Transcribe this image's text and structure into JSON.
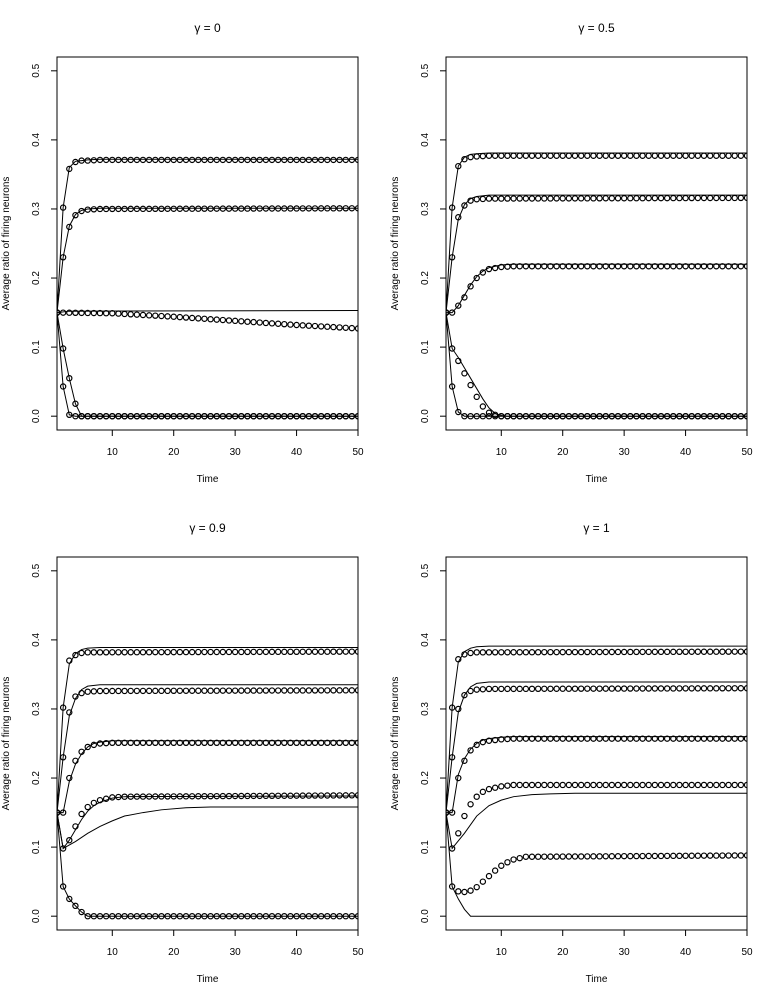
{
  "chart_data": [
    {
      "type": "line",
      "title": "γ = 0",
      "xlabel": "Time",
      "ylabel": "Average ratio of firing neurons",
      "xlim": [
        1,
        50
      ],
      "ylim": [
        -0.02,
        0.52
      ],
      "xticks": [
        10,
        20,
        30,
        40,
        50
      ],
      "yticks": [
        0.0,
        0.1,
        0.2,
        0.3,
        0.4,
        0.5
      ],
      "grid": false,
      "series": [
        {
          "style": "lines",
          "x": [
            1,
            2,
            3,
            4,
            5,
            6,
            8,
            50
          ],
          "y": [
            0.15,
            0.302,
            0.36,
            0.369,
            0.37,
            0.371,
            0.372,
            0.372
          ]
        },
        {
          "style": "lines",
          "x": [
            1,
            2,
            3,
            4,
            5,
            6,
            8,
            50
          ],
          "y": [
            0.15,
            0.23,
            0.275,
            0.292,
            0.298,
            0.3,
            0.301,
            0.301
          ]
        },
        {
          "style": "lines",
          "x": [
            1,
            3,
            50
          ],
          "y": [
            0.15,
            0.152,
            0.153
          ]
        },
        {
          "style": "lines",
          "x": [
            1,
            2,
            3,
            4,
            5,
            50
          ],
          "y": [
            0.15,
            0.098,
            0.055,
            0.018,
            0.0,
            0.0
          ]
        },
        {
          "style": "lines",
          "x": [
            1,
            2,
            3,
            4,
            50
          ],
          "y": [
            0.15,
            0.043,
            0.002,
            0.0,
            0.0
          ]
        },
        {
          "style": "points",
          "x": [
            1,
            2,
            3,
            4,
            5,
            6,
            8,
            50
          ],
          "y": [
            0.15,
            0.302,
            0.358,
            0.368,
            0.37,
            0.37,
            0.371,
            0.371
          ]
        },
        {
          "style": "points",
          "x": [
            1,
            2,
            3,
            4,
            5,
            6,
            8,
            50
          ],
          "y": [
            0.15,
            0.23,
            0.274,
            0.291,
            0.297,
            0.299,
            0.3,
            0.301
          ]
        },
        {
          "style": "points",
          "x": [
            1,
            10,
            20,
            30,
            40,
            50
          ],
          "y": [
            0.15,
            0.149,
            0.144,
            0.138,
            0.132,
            0.127
          ]
        },
        {
          "style": "points",
          "x": [
            1,
            2,
            3,
            4,
            5,
            50
          ],
          "y": [
            0.15,
            0.098,
            0.055,
            0.018,
            0.0,
            0.0
          ]
        },
        {
          "style": "points",
          "x": [
            1,
            2,
            3,
            4,
            50
          ],
          "y": [
            0.15,
            0.043,
            0.002,
            0.0,
            0.0
          ]
        }
      ]
    },
    {
      "type": "line",
      "title": "γ = 0.5",
      "xlabel": "Time",
      "ylabel": "Average ratio of firing neurons",
      "xlim": [
        1,
        50
      ],
      "ylim": [
        -0.02,
        0.52
      ],
      "xticks": [
        10,
        20,
        30,
        40,
        50
      ],
      "yticks": [
        0.0,
        0.1,
        0.2,
        0.3,
        0.4,
        0.5
      ],
      "grid": false,
      "series": [
        {
          "style": "lines",
          "x": [
            1,
            2,
            3,
            4,
            5,
            6,
            8,
            50
          ],
          "y": [
            0.15,
            0.302,
            0.362,
            0.375,
            0.379,
            0.38,
            0.381,
            0.381
          ]
        },
        {
          "style": "lines",
          "x": [
            1,
            2,
            3,
            4,
            5,
            6,
            8,
            50
          ],
          "y": [
            0.15,
            0.23,
            0.285,
            0.306,
            0.315,
            0.318,
            0.32,
            0.32
          ]
        },
        {
          "style": "lines",
          "x": [
            1,
            2,
            3,
            4,
            5,
            6,
            7,
            8,
            10,
            12,
            50
          ],
          "y": [
            0.15,
            0.15,
            0.16,
            0.175,
            0.19,
            0.202,
            0.21,
            0.215,
            0.219,
            0.22,
            0.22
          ]
        },
        {
          "style": "lines",
          "x": [
            1,
            2,
            3,
            4,
            5,
            6,
            7,
            8,
            9,
            10,
            11,
            50
          ],
          "y": [
            0.15,
            0.098,
            0.085,
            0.07,
            0.055,
            0.04,
            0.025,
            0.012,
            0.004,
            0.001,
            0.0,
            0.0
          ]
        },
        {
          "style": "lines",
          "x": [
            1,
            2,
            3,
            4,
            50
          ],
          "y": [
            0.15,
            0.043,
            0.006,
            0.0,
            0.0
          ]
        },
        {
          "style": "points",
          "x": [
            1,
            2,
            3,
            4,
            5,
            6,
            8,
            50
          ],
          "y": [
            0.15,
            0.302,
            0.362,
            0.372,
            0.375,
            0.376,
            0.377,
            0.377
          ]
        },
        {
          "style": "points",
          "x": [
            1,
            2,
            3,
            4,
            5,
            6,
            8,
            50
          ],
          "y": [
            0.15,
            0.23,
            0.288,
            0.305,
            0.312,
            0.314,
            0.315,
            0.316
          ]
        },
        {
          "style": "points",
          "x": [
            1,
            2,
            3,
            4,
            5,
            6,
            7,
            8,
            10,
            12,
            50
          ],
          "y": [
            0.15,
            0.15,
            0.16,
            0.172,
            0.188,
            0.2,
            0.208,
            0.213,
            0.216,
            0.217,
            0.217
          ]
        },
        {
          "style": "points",
          "x": [
            1,
            2,
            3,
            4,
            5,
            6,
            7,
            8,
            9,
            10,
            11,
            50
          ],
          "y": [
            0.15,
            0.098,
            0.08,
            0.062,
            0.045,
            0.028,
            0.014,
            0.005,
            0.002,
            0.0,
            0.0,
            0.0
          ]
        },
        {
          "style": "points",
          "x": [
            1,
            2,
            3,
            4,
            50
          ],
          "y": [
            0.15,
            0.043,
            0.006,
            0.0,
            0.0
          ]
        }
      ]
    },
    {
      "type": "line",
      "title": "γ = 0.9",
      "xlabel": "Time",
      "ylabel": "Average ratio of firing neurons",
      "xlim": [
        1,
        50
      ],
      "ylim": [
        -0.02,
        0.52
      ],
      "xticks": [
        10,
        20,
        30,
        40,
        50
      ],
      "yticks": [
        0.0,
        0.1,
        0.2,
        0.3,
        0.4,
        0.5
      ],
      "grid": false,
      "series": [
        {
          "style": "lines",
          "x": [
            1,
            2,
            3,
            4,
            5,
            6,
            8,
            50
          ],
          "y": [
            0.15,
            0.302,
            0.365,
            0.38,
            0.386,
            0.388,
            0.389,
            0.389
          ]
        },
        {
          "style": "lines",
          "x": [
            1,
            2,
            3,
            4,
            5,
            6,
            8,
            50
          ],
          "y": [
            0.15,
            0.23,
            0.29,
            0.315,
            0.328,
            0.333,
            0.335,
            0.335
          ]
        },
        {
          "style": "lines",
          "x": [
            1,
            2,
            3,
            4,
            5,
            6,
            7,
            8,
            10,
            12,
            50
          ],
          "y": [
            0.15,
            0.15,
            0.195,
            0.22,
            0.235,
            0.245,
            0.25,
            0.252,
            0.254,
            0.254,
            0.254
          ]
        },
        {
          "style": "lines",
          "x": [
            1,
            2,
            3,
            4,
            5,
            6,
            7,
            8,
            10,
            12,
            50
          ],
          "y": [
            0.15,
            0.098,
            0.11,
            0.125,
            0.14,
            0.152,
            0.16,
            0.165,
            0.171,
            0.173,
            0.174
          ]
        },
        {
          "style": "lines",
          "x": [
            1,
            2,
            4,
            6,
            8,
            10,
            12,
            15,
            18,
            22,
            26,
            50
          ],
          "y": [
            0.15,
            0.098,
            0.108,
            0.12,
            0.13,
            0.138,
            0.145,
            0.15,
            0.154,
            0.157,
            0.158,
            0.158
          ]
        },
        {
          "style": "lines",
          "x": [
            1,
            2,
            3,
            4,
            5,
            6,
            50
          ],
          "y": [
            0.15,
            0.043,
            0.025,
            0.015,
            0.006,
            0.0,
            0.0
          ]
        },
        {
          "style": "points",
          "x": [
            1,
            2,
            3,
            4,
            5,
            6,
            8,
            50
          ],
          "y": [
            0.15,
            0.302,
            0.37,
            0.378,
            0.381,
            0.382,
            0.382,
            0.383
          ]
        },
        {
          "style": "points",
          "x": [
            1,
            2,
            3,
            4,
            5,
            6,
            8,
            50
          ],
          "y": [
            0.15,
            0.23,
            0.295,
            0.318,
            0.323,
            0.325,
            0.326,
            0.327
          ]
        },
        {
          "style": "points",
          "x": [
            1,
            2,
            3,
            4,
            5,
            6,
            7,
            8,
            10,
            12,
            50
          ],
          "y": [
            0.15,
            0.15,
            0.2,
            0.225,
            0.238,
            0.245,
            0.248,
            0.25,
            0.251,
            0.251,
            0.251
          ]
        },
        {
          "style": "points",
          "x": [
            1,
            2,
            3,
            4,
            5,
            6,
            7,
            8,
            10,
            12,
            50
          ],
          "y": [
            0.15,
            0.098,
            0.11,
            0.13,
            0.148,
            0.158,
            0.164,
            0.168,
            0.172,
            0.173,
            0.175
          ]
        },
        {
          "style": "points",
          "x": [
            1,
            2,
            3,
            4,
            5,
            6,
            50
          ],
          "y": [
            0.15,
            0.043,
            0.025,
            0.015,
            0.006,
            0.0,
            0.0
          ]
        }
      ]
    },
    {
      "type": "line",
      "title": "γ = 1",
      "xlabel": "Time",
      "ylabel": "Average ratio of firing neurons",
      "xlim": [
        1,
        50
      ],
      "ylim": [
        -0.02,
        0.52
      ],
      "xticks": [
        10,
        20,
        30,
        40,
        50
      ],
      "yticks": [
        0.0,
        0.1,
        0.2,
        0.3,
        0.4,
        0.5
      ],
      "grid": false,
      "series": [
        {
          "style": "lines",
          "x": [
            1,
            2,
            3,
            4,
            5,
            6,
            8,
            50
          ],
          "y": [
            0.15,
            0.302,
            0.368,
            0.383,
            0.388,
            0.39,
            0.391,
            0.391
          ]
        },
        {
          "style": "lines",
          "x": [
            1,
            2,
            3,
            4,
            5,
            6,
            8,
            50
          ],
          "y": [
            0.15,
            0.23,
            0.295,
            0.32,
            0.332,
            0.337,
            0.339,
            0.339
          ]
        },
        {
          "style": "lines",
          "x": [
            1,
            2,
            3,
            4,
            5,
            6,
            7,
            8,
            10,
            12,
            50
          ],
          "y": [
            0.15,
            0.15,
            0.205,
            0.228,
            0.242,
            0.25,
            0.255,
            0.257,
            0.259,
            0.26,
            0.26
          ]
        },
        {
          "style": "lines",
          "x": [
            1,
            2,
            4,
            6,
            8,
            10,
            12,
            15,
            18,
            22,
            50
          ],
          "y": [
            0.15,
            0.098,
            0.12,
            0.145,
            0.16,
            0.168,
            0.173,
            0.176,
            0.177,
            0.178,
            0.178
          ]
        },
        {
          "style": "lines",
          "x": [
            1,
            2,
            3,
            4,
            5,
            50
          ],
          "y": [
            0.15,
            0.043,
            0.025,
            0.01,
            0.0,
            0.0
          ]
        },
        {
          "style": "points",
          "x": [
            1,
            2,
            3,
            4,
            5,
            6,
            8,
            50
          ],
          "y": [
            0.15,
            0.302,
            0.372,
            0.379,
            0.381,
            0.382,
            0.382,
            0.383
          ]
        },
        {
          "style": "points",
          "x": [
            1,
            2,
            3,
            4,
            5,
            6,
            8,
            50
          ],
          "y": [
            0.15,
            0.23,
            0.3,
            0.32,
            0.326,
            0.328,
            0.329,
            0.33
          ]
        },
        {
          "style": "points",
          "x": [
            1,
            2,
            3,
            4,
            5,
            6,
            7,
            8,
            10,
            12,
            50
          ],
          "y": [
            0.15,
            0.15,
            0.2,
            0.225,
            0.24,
            0.248,
            0.252,
            0.254,
            0.256,
            0.257,
            0.257
          ]
        },
        {
          "style": "points",
          "x": [
            1,
            2,
            3,
            4,
            5,
            6,
            7,
            8,
            10,
            12,
            50
          ],
          "y": [
            0.15,
            0.098,
            0.12,
            0.145,
            0.162,
            0.173,
            0.18,
            0.184,
            0.188,
            0.19,
            0.19
          ]
        },
        {
          "style": "points",
          "x": [
            1,
            2,
            3,
            4,
            5,
            6,
            7,
            8,
            9,
            10,
            11,
            12,
            14,
            50
          ],
          "y": [
            0.15,
            0.043,
            0.036,
            0.035,
            0.037,
            0.042,
            0.05,
            0.058,
            0.066,
            0.073,
            0.078,
            0.082,
            0.086,
            0.088
          ]
        }
      ]
    }
  ]
}
